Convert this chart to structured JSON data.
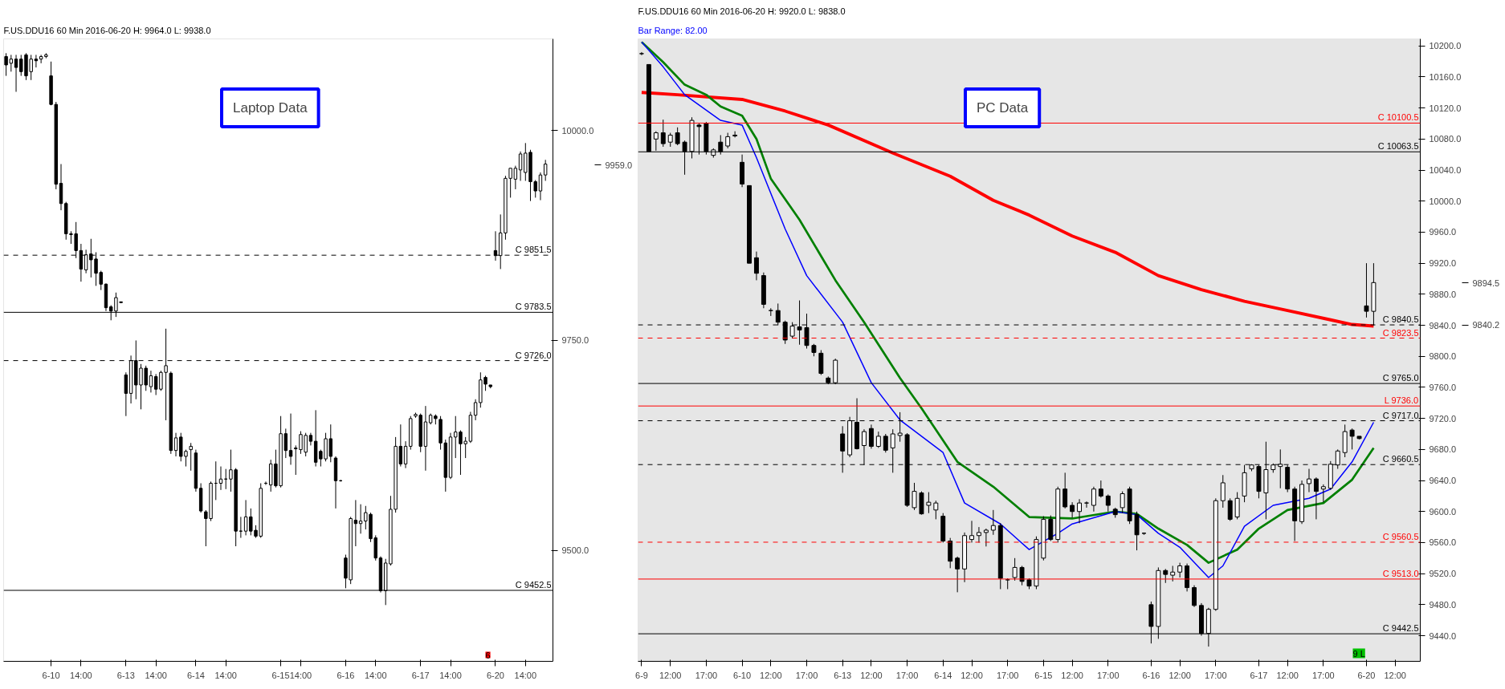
{
  "chart_data": [
    {
      "type": "candlestick",
      "title": "F.US.DDU16 60 Min 2016-06-20 H: 9964.0 L: 9938.0",
      "grid": false,
      "categories": [
        null,
        null,
        null,
        null,
        null,
        null,
        null,
        null,
        null,
        "6-10",
        null,
        null,
        null,
        null,
        null,
        "14:00",
        null,
        null,
        null,
        null,
        null,
        null,
        null,
        null,
        "6-13",
        null,
        null,
        null,
        null,
        null,
        "14:00",
        null,
        null,
        null,
        null,
        null,
        null,
        null,
        "6-14",
        null,
        null,
        null,
        null,
        null,
        "14:00",
        null,
        null,
        null,
        null,
        null,
        null,
        null,
        null,
        null,
        null,
        "6-15",
        null,
        null,
        null,
        "14:00",
        null,
        null,
        null,
        null,
        null,
        null,
        null,
        null,
        "6-16",
        null,
        null,
        null,
        null,
        null,
        "14:00",
        null,
        null,
        null,
        null,
        null,
        null,
        null,
        null,
        "6-17",
        null,
        null,
        null,
        null,
        null,
        "14:00",
        null,
        null,
        null,
        null,
        null,
        null,
        null,
        null,
        "6-20",
        null,
        null,
        null,
        null,
        null,
        "14:00",
        null,
        null,
        null,
        null,
        null
      ],
      "ohlc": [
        [
          10088,
          10092,
          10065,
          10078
        ],
        [
          10080,
          10090,
          10070,
          10085
        ],
        [
          10085,
          10090,
          10046,
          10075
        ],
        [
          10085,
          10090,
          10065,
          10070
        ],
        [
          10090,
          10092,
          10060,
          10065
        ],
        [
          10070,
          10090,
          10060,
          10085
        ],
        [
          10085,
          10090,
          10075,
          10083
        ],
        [
          10085,
          10090,
          10080,
          10088
        ],
        [
          10088,
          10092,
          10086,
          10090
        ],
        [
          10065,
          10082,
          10030,
          10031
        ],
        [
          10031,
          10034,
          9930,
          9936
        ],
        [
          9937,
          9960,
          9905,
          9913
        ],
        [
          9913,
          9915,
          9870,
          9877
        ],
        [
          9877,
          9880,
          9865,
          9876
        ],
        [
          9877,
          9891,
          9848,
          9857
        ],
        [
          9857,
          9865,
          9820,
          9835
        ],
        [
          9834,
          9858,
          9830,
          9852
        ],
        [
          9853,
          9871,
          9825,
          9846
        ],
        [
          9847,
          9855,
          9815,
          9830
        ],
        [
          9831,
          9833,
          9810,
          9817
        ],
        [
          9817,
          9818,
          9785,
          9789
        ],
        [
          9790,
          9792,
          9774,
          9785
        ],
        [
          9785,
          9807,
          9778,
          9801
        ],
        [
          9796,
          9796,
          9795,
          9795
        ],
        [
          9709,
          9712,
          9660,
          9687
        ],
        [
          9687,
          9732,
          9675,
          9726
        ],
        [
          9726,
          9750,
          9680,
          9697
        ],
        [
          9697,
          9722,
          9668,
          9717
        ],
        [
          9717,
          9720,
          9690,
          9697
        ],
        [
          9695,
          9714,
          9688,
          9708
        ],
        [
          9707,
          9710,
          9685,
          9692
        ],
        [
          9692,
          9714,
          9690,
          9712
        ],
        [
          9712,
          9764,
          9655,
          9720
        ],
        [
          9711,
          9713,
          9615,
          9619
        ],
        [
          9619,
          9640,
          9612,
          9634
        ],
        [
          9635,
          9640,
          9606,
          9612
        ],
        [
          9612,
          9620,
          9600,
          9618
        ],
        [
          9620,
          9628,
          9595,
          9624
        ],
        [
          9616,
          9620,
          9570,
          9574
        ],
        [
          9574,
          9580,
          9545,
          9547
        ],
        [
          9546,
          9548,
          9505,
          9538
        ],
        [
          9538,
          9582,
          9535,
          9580
        ],
        [
          9580,
          9606,
          9560,
          9580
        ],
        [
          9580,
          9600,
          9572,
          9585
        ],
        [
          9585,
          9597,
          9573,
          9585
        ],
        [
          9585,
          9620,
          9570,
          9596
        ],
        [
          9596,
          9598,
          9505,
          9523
        ],
        [
          9523,
          9540,
          9515,
          9523
        ],
        [
          9523,
          9560,
          9518,
          9540
        ],
        [
          9540,
          9550,
          9518,
          9523
        ],
        [
          9524,
          9530,
          9515,
          9517
        ],
        [
          9517,
          9580,
          9515,
          9574
        ],
        [
          9580,
          9582,
          9578,
          9580
        ],
        [
          9578,
          9608,
          9570,
          9603
        ],
        [
          9603,
          9620,
          9575,
          9577
        ],
        [
          9577,
          9660,
          9575,
          9639
        ],
        [
          9639,
          9645,
          9610,
          9619
        ],
        [
          9619,
          9663,
          9602,
          9612
        ],
        [
          9622,
          9625,
          9590,
          9621
        ],
        [
          9620,
          9642,
          9615,
          9638
        ],
        [
          9617,
          9640,
          9612,
          9637
        ],
        [
          9637,
          9640,
          9625,
          9630
        ],
        [
          9630,
          9667,
          9600,
          9605
        ],
        [
          9618,
          9620,
          9600,
          9609
        ],
        [
          9609,
          9640,
          9606,
          9633
        ],
        [
          9633,
          9650,
          9605,
          9612
        ],
        [
          9610,
          9612,
          9550,
          9583
        ],
        [
          9583,
          9584,
          9582,
          9583
        ],
        [
          9491,
          9495,
          9455,
          9467
        ],
        [
          9465,
          9540,
          9460,
          9538
        ],
        [
          9536,
          9560,
          9505,
          9532
        ],
        [
          9532,
          9555,
          9520,
          9535
        ],
        [
          9535,
          9553,
          9525,
          9545
        ],
        [
          9543,
          9545,
          9510,
          9514
        ],
        [
          9515,
          9518,
          9488,
          9491
        ],
        [
          9491,
          9493,
          9450,
          9452
        ],
        [
          9452,
          9490,
          9435,
          9485
        ],
        [
          9484,
          9565,
          9482,
          9549
        ],
        [
          9549,
          9635,
          9545,
          9624
        ],
        [
          9624,
          9650,
          9600,
          9603
        ],
        [
          9603,
          9630,
          9598,
          9624
        ],
        [
          9624,
          9660,
          9620,
          9657
        ],
        [
          9660,
          9664,
          9658,
          9662
        ],
        [
          9661,
          9663,
          9617,
          9624
        ],
        [
          9624,
          9672,
          9595,
          9653
        ],
        [
          9652,
          9663,
          9650,
          9661
        ],
        [
          9660,
          9662,
          9650,
          9657
        ],
        [
          9656,
          9660,
          9620,
          9628
        ],
        [
          9628,
          9632,
          9570,
          9587
        ],
        [
          9587,
          9640,
          9585,
          9635
        ],
        [
          9635,
          9660,
          9610,
          9641
        ],
        [
          9641,
          9643,
          9590,
          9627
        ],
        [
          9627,
          9635,
          9610,
          9630
        ],
        [
          9630,
          9665,
          9628,
          9661
        ],
        [
          9661,
          9680,
          9655,
          9676
        ],
        [
          9676,
          9712,
          9670,
          9703
        ],
        [
          9706,
          9708,
          9690,
          9698
        ],
        [
          9697,
          9697,
          9693,
          9695
        ],
        [
          9857,
          9880,
          9845,
          9851
        ],
        [
          9851,
          9900,
          9835,
          9878
        ],
        [
          9878,
          9946,
          9870,
          9943
        ],
        [
          9943,
          9955,
          9920,
          9955
        ],
        [
          9942,
          9958,
          9930,
          9955
        ],
        [
          9953,
          9975,
          9940,
          9972
        ],
        [
          9950,
          9985,
          9940,
          9973
        ],
        [
          9974,
          9977,
          9916,
          9939
        ],
        [
          9939,
          9941,
          9920,
          9928
        ],
        [
          9928,
          9950,
          9917,
          9947
        ],
        [
          9947,
          9965,
          9940,
          9960
        ],
        null
      ],
      "ylim": [
        9368,
        10109
      ],
      "yticks": [
        {
          "value": 9500,
          "label": "9500.0"
        },
        {
          "value": 9750,
          "label": "9750.0"
        },
        {
          "value": 10000,
          "label": "10000.0"
        }
      ],
      "ref_lines": [
        {
          "axis": "y",
          "value": 9851.5,
          "label": "C 9851.5",
          "color": "#000000",
          "line_style": "dashed"
        },
        {
          "axis": "y",
          "value": 9783.5,
          "label": "C 9783.5",
          "color": "#000000",
          "line_style": "solid"
        },
        {
          "axis": "y",
          "value": 9726.0,
          "label": "C 9726.0",
          "color": "#000000",
          "line_style": "dashed"
        },
        {
          "axis": "y",
          "value": 9452.5,
          "label": "C 9452.5",
          "color": "#000000",
          "line_style": "solid"
        }
      ],
      "annotations": [
        "Laptop Data",
        "9959.0",
        "6"
      ]
    },
    {
      "type": "candlestick",
      "title": "F.US.DDU16 60 Min 2016-06-20 H: 9920.0 L: 9838.0",
      "subtitle": "Bar Range: 82.00",
      "grid": false,
      "categories": [
        "6-9",
        null,
        null,
        null,
        "12:00",
        null,
        null,
        null,
        null,
        "17:00",
        null,
        null,
        null,
        null,
        "6-10",
        null,
        null,
        null,
        "12:00",
        null,
        null,
        null,
        null,
        "17:00",
        null,
        null,
        null,
        null,
        "6-13",
        null,
        null,
        null,
        "12:00",
        null,
        null,
        null,
        null,
        "17:00",
        null,
        null,
        null,
        null,
        "6-14",
        null,
        null,
        null,
        "12:00",
        null,
        null,
        null,
        null,
        "17:00",
        null,
        null,
        null,
        null,
        "6-15",
        null,
        null,
        null,
        "12:00",
        null,
        null,
        null,
        null,
        "17:00",
        null,
        null,
        null,
        null,
        null,
        "6-16",
        null,
        null,
        null,
        "12:00",
        null,
        null,
        null,
        null,
        "17:00",
        null,
        null,
        null,
        null,
        null,
        "6-17",
        null,
        null,
        null,
        "12:00",
        null,
        null,
        null,
        null,
        "17:00",
        null,
        null,
        null,
        null,
        null,
        "6-20",
        null,
        null,
        null,
        "12:00",
        null,
        null,
        null
      ],
      "ohlc": [
        [
          10190,
          10192,
          10188,
          10190
        ],
        [
          10176,
          10176,
          10064,
          10064
        ],
        [
          10080,
          10090,
          10065,
          10088
        ],
        [
          10088,
          10105,
          10070,
          10074
        ],
        [
          10076,
          10088,
          10070,
          10085
        ],
        [
          10088,
          10095,
          10072,
          10074
        ],
        [
          10076,
          10078,
          10034,
          10064
        ],
        [
          10064,
          10108,
          10055,
          10104
        ],
        [
          10098,
          10100,
          10060,
          10096
        ],
        [
          10100,
          10102,
          10060,
          10064
        ],
        [
          10059,
          10068,
          10056,
          10066
        ],
        [
          10076,
          10085,
          10060,
          10064
        ],
        [
          10071,
          10088,
          10068,
          10083
        ],
        [
          10085,
          10090,
          10082,
          10084
        ],
        [
          10050,
          10060,
          10018,
          10022
        ],
        [
          10020,
          10020,
          9920,
          9920
        ],
        [
          9927,
          9935,
          9898,
          9907
        ],
        [
          9904,
          9908,
          9862,
          9867
        ],
        [
          9859,
          9862,
          9852,
          9859
        ],
        [
          9859,
          9868,
          9840,
          9844
        ],
        [
          9844,
          9846,
          9816,
          9821
        ],
        [
          9826,
          9844,
          9823,
          9839
        ],
        [
          9838,
          9872,
          9815,
          9834
        ],
        [
          9837,
          9855,
          9810,
          9814
        ],
        [
          9814,
          9816,
          9800,
          9805
        ],
        [
          9804,
          9808,
          9776,
          9778
        ],
        [
          9772,
          9774,
          9764,
          9766
        ],
        [
          9766,
          9797,
          9764,
          9795
        ],
        [
          9700,
          9710,
          9650,
          9678
        ],
        [
          9673,
          9722,
          9670,
          9717
        ],
        [
          9715,
          9746,
          9680,
          9681
        ],
        [
          9685,
          9706,
          9660,
          9703
        ],
        [
          9707,
          9712,
          9681,
          9684
        ],
        [
          9684,
          9703,
          9682,
          9697
        ],
        [
          9697,
          9700,
          9676,
          9679
        ],
        [
          9682,
          9706,
          9650,
          9700
        ],
        [
          9698,
          9728,
          9690,
          9701
        ],
        [
          9699,
          9701,
          9606,
          9608
        ],
        [
          9605,
          9637,
          9602,
          9626
        ],
        [
          9624,
          9626,
          9596,
          9597
        ],
        [
          9608,
          9625,
          9598,
          9612
        ],
        [
          9602,
          9614,
          9590,
          9611
        ],
        [
          9594,
          9598,
          9560,
          9562
        ],
        [
          9562,
          9566,
          9527,
          9536
        ],
        [
          9540,
          9542,
          9496,
          9526
        ],
        [
          9526,
          9573,
          9509,
          9569
        ],
        [
          9564,
          9588,
          9560,
          9569
        ],
        [
          9569,
          9580,
          9560,
          9573
        ],
        [
          9573,
          9578,
          9555,
          9576
        ],
        [
          9576,
          9602,
          9570,
          9582
        ],
        [
          9582,
          9585,
          9500,
          9514
        ],
        [
          9512,
          9514,
          9500,
          9512
        ],
        [
          9515,
          9540,
          9511,
          9528
        ],
        [
          9528,
          9530,
          9505,
          9510
        ],
        [
          9512,
          9514,
          9500,
          9504
        ],
        [
          9504,
          9568,
          9500,
          9564
        ],
        [
          9540,
          9594,
          9537,
          9590
        ],
        [
          9590,
          9595,
          9562,
          9564
        ],
        [
          9564,
          9632,
          9560,
          9629
        ],
        [
          9629,
          9650,
          9604,
          9606
        ],
        [
          9608,
          9612,
          9592,
          9600
        ],
        [
          9600,
          9616,
          9585,
          9611
        ],
        [
          9611,
          9613,
          9605,
          9611
        ],
        [
          9608,
          9632,
          9600,
          9629
        ],
        [
          9629,
          9640,
          9618,
          9620
        ],
        [
          9620,
          9622,
          9600,
          9608
        ],
        [
          9603,
          9605,
          9592,
          9596
        ],
        [
          9605,
          9626,
          9598,
          9623
        ],
        [
          9629,
          9632,
          9584,
          9588
        ],
        [
          9596,
          9600,
          9550,
          9570
        ],
        [
          9572,
          9573,
          9570,
          9572
        ],
        [
          9480,
          9484,
          9430,
          9452
        ],
        [
          9452,
          9528,
          9436,
          9524
        ],
        [
          9524,
          9526,
          9508,
          9519
        ],
        [
          9518,
          9530,
          9510,
          9522
        ],
        [
          9522,
          9534,
          9515,
          9530
        ],
        [
          9530,
          9533,
          9497,
          9502
        ],
        [
          9502,
          9505,
          9477,
          9479
        ],
        [
          9479,
          9482,
          9440,
          9443
        ],
        [
          9443,
          9476,
          9426,
          9474
        ],
        [
          9474,
          9617,
          9472,
          9614
        ],
        [
          9614,
          9647,
          9605,
          9637
        ],
        [
          9614,
          9617,
          9588,
          9590
        ],
        [
          9593,
          9625,
          9590,
          9617
        ],
        [
          9620,
          9660,
          9612,
          9650
        ],
        [
          9655,
          9661,
          9652,
          9660
        ],
        [
          9658,
          9660,
          9617,
          9626
        ],
        [
          9624,
          9690,
          9590,
          9654
        ],
        [
          9654,
          9662,
          9650,
          9660
        ],
        [
          9658,
          9680,
          9630,
          9661
        ],
        [
          9657,
          9660,
          9625,
          9629
        ],
        [
          9629,
          9632,
          9562,
          9588
        ],
        [
          9587,
          9640,
          9584,
          9635
        ],
        [
          9636,
          9655,
          9625,
          9642
        ],
        [
          9642,
          9644,
          9590,
          9626
        ],
        [
          9629,
          9635,
          9612,
          9632
        ],
        [
          9630,
          9665,
          9628,
          9661
        ],
        [
          9660,
          9680,
          9655,
          9678
        ],
        [
          9676,
          9712,
          9670,
          9703
        ],
        [
          9705,
          9707,
          9680,
          9697
        ],
        [
          9697,
          9697,
          9693,
          9694
        ],
        [
          9865,
          9920,
          9850,
          9858
        ],
        [
          9858,
          9920,
          9840,
          9895
        ],
        null,
        null,
        null,
        null,
        null,
        null
      ],
      "series": [
        {
          "type": "line",
          "color": "#ff0000",
          "values": [
            10140,
            null,
            null,
            null,
            null,
            10137,
            null,
            null,
            null,
            null,
            null,
            null,
            null,
            null,
            10131,
            null,
            null,
            null,
            null,
            null,
            10116,
            null,
            null,
            null,
            null,
            null,
            10098,
            null,
            null,
            null,
            null,
            null,
            null,
            null,
            null,
            10062,
            null,
            null,
            null,
            null,
            null,
            null,
            null,
            10032,
            null,
            null,
            null,
            null,
            null,
            10001,
            null,
            null,
            null,
            null,
            9982,
            null,
            null,
            null,
            null,
            null,
            9955,
            null,
            null,
            null,
            null,
            null,
            9934,
            null,
            null,
            null,
            null,
            null,
            9904,
            null,
            null,
            null,
            null,
            null,
            9886,
            null,
            null,
            null,
            null,
            null,
            9871,
            null,
            null,
            null,
            null,
            null,
            9859,
            null,
            null,
            null,
            null,
            null,
            9847,
            null,
            null,
            9841,
            null,
            null,
            9839,
            null,
            null,
            null,
            null,
            null,
            null
          ]
        },
        {
          "type": "line",
          "color": "#008000",
          "values": [
            10205,
            null,
            null,
            10179,
            null,
            null,
            10150,
            null,
            null,
            10137,
            null,
            10122,
            null,
            null,
            10110,
            null,
            10080,
            null,
            10029,
            null,
            null,
            null,
            9976,
            null,
            null,
            null,
            null,
            9898,
            null,
            null,
            null,
            9844,
            null,
            null,
            null,
            null,
            9772,
            null,
            null,
            9733,
            null,
            null,
            null,
            null,
            9664,
            null,
            null,
            null,
            null,
            9632,
            null,
            null,
            null,
            null,
            9593,
            null,
            null,
            null,
            null,
            null,
            9591,
            null,
            null,
            null,
            null,
            null,
            9600,
            null,
            null,
            9597,
            null,
            null,
            9578,
            null,
            null,
            null,
            9557,
            null,
            null,
            9534,
            null,
            null,
            null,
            9551,
            null,
            null,
            9578,
            null,
            null,
            null,
            9602,
            null,
            null,
            null,
            null,
            9611,
            null,
            null,
            null,
            9641,
            null,
            null,
            9682,
            null,
            null,
            null,
            null,
            null,
            null
          ]
        },
        {
          "type": "line",
          "color": "#0000ff",
          "values": [
            10205,
            null,
            null,
            10173,
            null,
            null,
            10137,
            null,
            null,
            null,
            null,
            10104,
            null,
            null,
            10098,
            null,
            10056,
            null,
            null,
            null,
            9964,
            null,
            null,
            9904,
            null,
            null,
            null,
            null,
            9844,
            null,
            null,
            null,
            9766,
            null,
            null,
            null,
            9718,
            null,
            null,
            null,
            null,
            null,
            9676,
            null,
            null,
            9611,
            null,
            null,
            null,
            null,
            9584,
            null,
            null,
            null,
            9551,
            null,
            null,
            null,
            9572,
            null,
            9584,
            null,
            null,
            null,
            null,
            null,
            9600,
            null,
            null,
            9596,
            null,
            null,
            9572,
            null,
            null,
            9554,
            null,
            null,
            null,
            9515,
            null,
            9530,
            null,
            null,
            9581,
            null,
            null,
            null,
            9608,
            null,
            null,
            null,
            null,
            9617,
            null,
            null,
            9629,
            null,
            null,
            9664,
            null,
            null,
            9715,
            null,
            null,
            null,
            null,
            null,
            null
          ]
        }
      ],
      "ylim": [
        9407,
        10209
      ],
      "yticks": [
        {
          "value": 9440,
          "label": "9440.0"
        },
        {
          "value": 9480,
          "label": "9480.0"
        },
        {
          "value": 9520,
          "label": "9520.0"
        },
        {
          "value": 9560,
          "label": "9560.0"
        },
        {
          "value": 9600,
          "label": "9600.0"
        },
        {
          "value": 9640,
          "label": "9640.0"
        },
        {
          "value": 9680,
          "label": "9680.0"
        },
        {
          "value": 9720,
          "label": "9720.0"
        },
        {
          "value": 9760,
          "label": "9760.0"
        },
        {
          "value": 9800,
          "label": "9800.0"
        },
        {
          "value": 9840,
          "label": "9840.0"
        },
        {
          "value": 9880,
          "label": "9880.0"
        },
        {
          "value": 9920,
          "label": "9920.0"
        },
        {
          "value": 9960,
          "label": "9960.0"
        },
        {
          "value": 10000,
          "label": "10000.0"
        },
        {
          "value": 10040,
          "label": "10040.0"
        },
        {
          "value": 10080,
          "label": "10080.0"
        },
        {
          "value": 10120,
          "label": "10120.0"
        },
        {
          "value": 10160,
          "label": "10160.0"
        },
        {
          "value": 10200,
          "label": "10200.0"
        }
      ],
      "ref_lines": [
        {
          "axis": "y",
          "value": 10100.5,
          "label": "C 10100.5",
          "color": "#ff0000",
          "line_style": "solid"
        },
        {
          "axis": "y",
          "value": 10063.5,
          "label": "C 10063.5",
          "color": "#000000",
          "line_style": "solid"
        },
        {
          "axis": "y",
          "value": 9840.5,
          "label": "C 9840.5",
          "color": "#000000",
          "line_style": "dashed"
        },
        {
          "axis": "y",
          "value": 9823.5,
          "label": "C 9823.5",
          "color": "#ff0000",
          "line_style": "dashed"
        },
        {
          "axis": "y",
          "value": 9765.0,
          "label": "C 9765.0",
          "color": "#000000",
          "line_style": "solid"
        },
        {
          "axis": "y",
          "value": 9736.0,
          "label": "L 9736.0",
          "color": "#ff0000",
          "line_style": "solid"
        },
        {
          "axis": "y",
          "value": 9717.0,
          "label": "C 9717.0",
          "color": "#000000",
          "line_style": "dashed"
        },
        {
          "axis": "y",
          "value": 9660.5,
          "label": "C 9660.5",
          "color": "#000000",
          "line_style": "dashed"
        },
        {
          "axis": "y",
          "value": 9560.5,
          "label": "C 9560.5",
          "color": "#ff0000",
          "line_style": "dashed"
        },
        {
          "axis": "y",
          "value": 9513.0,
          "label": "C 9513.0",
          "color": "#ff0000",
          "line_style": "solid"
        },
        {
          "axis": "y",
          "value": 9442.5,
          "label": "C 9442.5",
          "color": "#000000",
          "line_style": "solid"
        }
      ],
      "annotations": [
        "PC Data",
        "9894.5",
        "9840.2",
        "9 L"
      ]
    }
  ]
}
